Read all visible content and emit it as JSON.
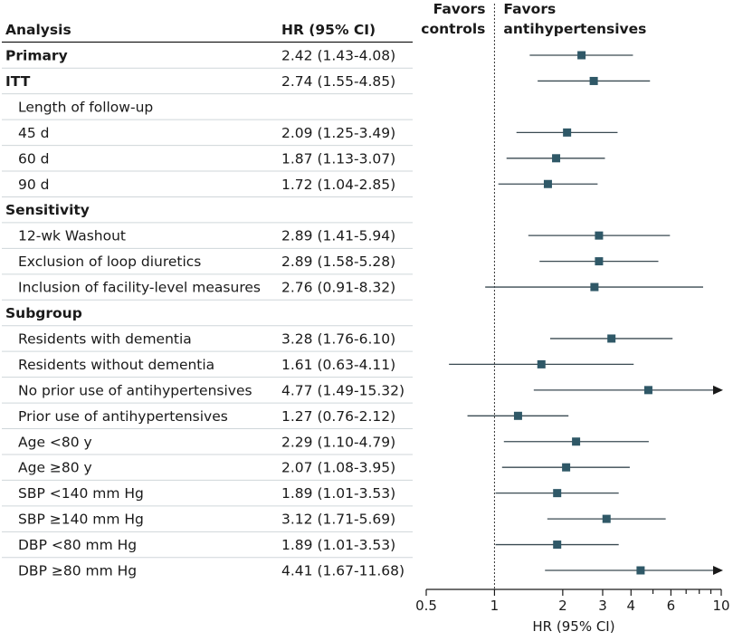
{
  "chart_data": {
    "type": "forest",
    "columns": {
      "analysis": "Analysis",
      "hr": "HR (95% CI)"
    },
    "favors": {
      "left": [
        "Favors",
        "controls"
      ],
      "right": [
        "Favors",
        "antihypertensives"
      ]
    },
    "xlabel": "HR (95% CI)",
    "xscale": "log",
    "xlim": [
      0.5,
      10
    ],
    "xticks": [
      0.5,
      1,
      2,
      3,
      4,
      6,
      10
    ],
    "xtick_labels": [
      "0.5",
      "1",
      "2",
      "3",
      "4",
      "6",
      "10"
    ],
    "minor_ticks": [
      5,
      7,
      8,
      9
    ],
    "reference_line": 1,
    "rows": [
      {
        "label": "Primary",
        "type": "header_data",
        "hr_text": "2.42 (1.43-4.08)",
        "hr": 2.42,
        "lo": 1.43,
        "hi": 4.08
      },
      {
        "label": "ITT",
        "type": "header_data",
        "hr_text": "2.74 (1.55-4.85)",
        "hr": 2.74,
        "lo": 1.55,
        "hi": 4.85
      },
      {
        "label": "Length of follow-up",
        "type": "subheader"
      },
      {
        "label": "45 d",
        "type": "data",
        "hr_text": "2.09 (1.25-3.49)",
        "hr": 2.09,
        "lo": 1.25,
        "hi": 3.49
      },
      {
        "label": "60 d",
        "type": "data",
        "hr_text": "1.87 (1.13-3.07)",
        "hr": 1.87,
        "lo": 1.13,
        "hi": 3.07
      },
      {
        "label": "90 d",
        "type": "data",
        "hr_text": "1.72 (1.04-2.85)",
        "hr": 1.72,
        "lo": 1.04,
        "hi": 2.85
      },
      {
        "label": "Sensitivity",
        "type": "header"
      },
      {
        "label": "12-wk Washout",
        "type": "data",
        "hr_text": "2.89 (1.41-5.94)",
        "hr": 2.89,
        "lo": 1.41,
        "hi": 5.94
      },
      {
        "label": "Exclusion of loop diuretics",
        "type": "data",
        "hr_text": "2.89 (1.58-5.28)",
        "hr": 2.89,
        "lo": 1.58,
        "hi": 5.28
      },
      {
        "label": "Inclusion of facility-level measures",
        "type": "data",
        "hr_text": "2.76 (0.91-8.32)",
        "hr": 2.76,
        "lo": 0.91,
        "hi": 8.32
      },
      {
        "label": "Subgroup",
        "type": "header"
      },
      {
        "label": "Residents with dementia",
        "type": "data",
        "hr_text": "3.28 (1.76-6.10)",
        "hr": 3.28,
        "lo": 1.76,
        "hi": 6.1
      },
      {
        "label": "Residents without dementia",
        "type": "data",
        "hr_text": "1.61 (0.63-4.11)",
        "hr": 1.61,
        "lo": 0.63,
        "hi": 4.11
      },
      {
        "label": "No prior use of antihypertensives",
        "type": "data",
        "hr_text": "4.77 (1.49-15.32)",
        "hr": 4.77,
        "lo": 1.49,
        "hi": 15.32
      },
      {
        "label": "Prior use of antihypertensives",
        "type": "data",
        "hr_text": "1.27 (0.76-2.12)",
        "hr": 1.27,
        "lo": 0.76,
        "hi": 2.12
      },
      {
        "label": "Age <80 y",
        "type": "data",
        "hr_text": "2.29 (1.10-4.79)",
        "hr": 2.29,
        "lo": 1.1,
        "hi": 4.79
      },
      {
        "label": "Age ≥80 y",
        "type": "data",
        "hr_text": "2.07 (1.08-3.95)",
        "hr": 2.07,
        "lo": 1.08,
        "hi": 3.95
      },
      {
        "label": "SBP <140 mm Hg",
        "type": "data",
        "hr_text": "1.89 (1.01-3.53)",
        "hr": 1.89,
        "lo": 1.01,
        "hi": 3.53
      },
      {
        "label": "SBP ≥140 mm Hg",
        "type": "data",
        "hr_text": "3.12 (1.71-5.69)",
        "hr": 3.12,
        "lo": 1.71,
        "hi": 5.69
      },
      {
        "label": "DBP <80 mm Hg",
        "type": "data",
        "hr_text": "1.89 (1.01-3.53)",
        "hr": 1.89,
        "lo": 1.01,
        "hi": 3.53
      },
      {
        "label": "DBP ≥80 mm Hg",
        "type": "data",
        "hr_text": "4.41 (1.67-11.68)",
        "hr": 4.41,
        "lo": 1.67,
        "hi": 11.68
      }
    ],
    "colors": {
      "marker": "#2f5867",
      "ci_line": "#3a4a52",
      "row_rule": "#cfd6da",
      "text": "#1a1a1a"
    }
  }
}
